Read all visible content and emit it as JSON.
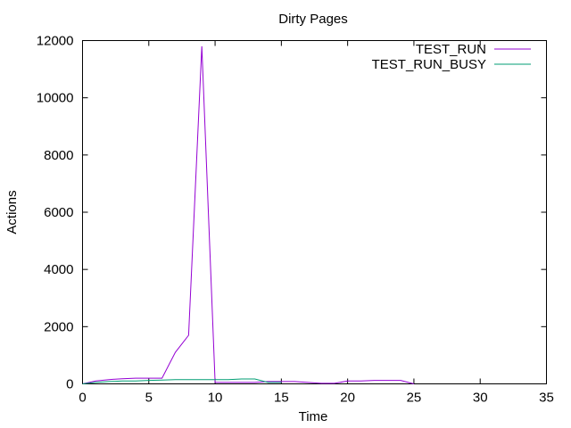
{
  "chart_data": {
    "type": "line",
    "title": "Dirty Pages",
    "xlabel": "Time",
    "ylabel": "Actions",
    "xlim": [
      0,
      35
    ],
    "ylim": [
      0,
      12000
    ],
    "xticks": [
      0,
      5,
      10,
      15,
      20,
      25,
      30,
      35
    ],
    "yticks": [
      0,
      2000,
      4000,
      6000,
      8000,
      10000,
      12000
    ],
    "grid": false,
    "legend_position": "top-right",
    "series": [
      {
        "name": "TEST_RUN",
        "color": "#9400d3",
        "x": [
          0,
          1,
          2,
          3,
          4,
          5,
          6,
          7,
          8,
          9,
          10,
          11,
          12,
          13,
          14,
          15,
          16,
          17,
          18,
          19,
          20,
          21,
          22,
          23,
          24,
          25
        ],
        "y": [
          0,
          100,
          150,
          180,
          200,
          200,
          200,
          1100,
          1700,
          11800,
          50,
          50,
          50,
          50,
          80,
          80,
          80,
          50,
          20,
          20,
          100,
          100,
          120,
          120,
          120,
          0
        ]
      },
      {
        "name": "TEST_RUN_BUSY",
        "color": "#009e73",
        "x": [
          0,
          1,
          2,
          3,
          4,
          5,
          6,
          7,
          8,
          9,
          10,
          11,
          12,
          13,
          14,
          15
        ],
        "y": [
          0,
          50,
          80,
          100,
          100,
          120,
          130,
          150,
          150,
          150,
          150,
          150,
          170,
          170,
          50,
          50
        ]
      }
    ]
  }
}
